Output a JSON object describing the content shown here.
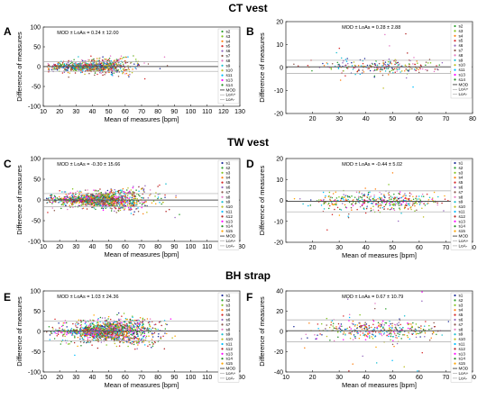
{
  "sections": [
    {
      "title": "CT vest"
    },
    {
      "title": "TW vest"
    },
    {
      "title": "BH strap"
    }
  ],
  "legend_labels": {
    "ct_left": [
      "s2",
      "s3",
      "s4",
      "s5",
      "s6",
      "s7",
      "s8",
      "s9",
      "s10",
      "s11",
      "s13",
      "s14",
      "MOD",
      "LoA+",
      "LoA-"
    ],
    "ct_right": [
      "s2",
      "s3",
      "s4",
      "s5",
      "s6",
      "s7",
      "s8",
      "s9",
      "s10",
      "s11",
      "s13",
      "s14",
      "MOD",
      "LoA+",
      "LoA-"
    ],
    "full": [
      "s1",
      "s2",
      "s3",
      "s4",
      "s5",
      "s6",
      "s7",
      "s8",
      "s9",
      "s10",
      "s11",
      "s12",
      "s13",
      "s14",
      "s15",
      "MOD",
      "LoA+",
      "LoA-"
    ]
  },
  "colors": {
    "subjects": [
      "#1f2f9a",
      "#2ca02c",
      "#7fc31c",
      "#ff7f0e",
      "#d62728",
      "#9467bd",
      "#8c564b",
      "#e377c2",
      "#17becf",
      "#bcbd22",
      "#00bfff",
      "#b22222",
      "#ff00ff",
      "#228b22",
      "#ffa500"
    ],
    "mod_line": "#555555",
    "loa_line": "#aaaaaa"
  },
  "chart_data": [
    {
      "panel": "A",
      "section": "CT vest",
      "type": "scatter",
      "annotation": "MOD ± LoAs = 0.24 ± 12.00",
      "xlabel": "Mean of measures [bpm]",
      "ylabel": "Difference of measures",
      "xlim": [
        10,
        130
      ],
      "ylim": [
        -100,
        100
      ],
      "xticks": [
        10,
        20,
        30,
        40,
        50,
        60,
        70,
        80,
        90,
        100,
        110,
        120,
        130
      ],
      "yticks": [
        -100,
        -50,
        0,
        50,
        100
      ],
      "mod": 0.24,
      "loa_upper": 12.24,
      "loa_lower": -11.76,
      "pattern": "diagonal",
      "subject_count": 12,
      "legend": "ct_left",
      "x_center": 40,
      "x_spread": 30,
      "y_spread": 25,
      "n_points": 900,
      "seed": 11
    },
    {
      "panel": "B",
      "section": "CT vest",
      "type": "scatter",
      "annotation": "MOD ± LoAs = 0.28 ± 2.88",
      "xlabel": "",
      "ylabel": "Difference of measures",
      "xlim": [
        10,
        80
      ],
      "ylim": [
        -20,
        20
      ],
      "xticks": [
        20,
        30,
        40,
        50,
        60,
        70,
        80
      ],
      "yticks": [
        -20,
        -10,
        0,
        10,
        20
      ],
      "mod": 0.28,
      "loa_upper": 3.16,
      "loa_lower": -2.6,
      "pattern": "cloud",
      "subject_count": 12,
      "legend": "ct_right",
      "x_center": 45,
      "x_spread": 12,
      "y_spread": 2.6,
      "n_points": 260,
      "seed": 22
    },
    {
      "panel": "C",
      "section": "TW vest",
      "type": "scatter",
      "annotation": "MOD ± LoAs = -0.30 ± 15.66",
      "xlabel": "Mean of measures [bpm]",
      "ylabel": "Difference of measures",
      "xlim": [
        10,
        130
      ],
      "ylim": [
        -100,
        100
      ],
      "xticks": [
        10,
        20,
        30,
        40,
        50,
        60,
        70,
        80,
        90,
        100,
        110,
        120,
        130
      ],
      "yticks": [
        -100,
        -50,
        0,
        50,
        100
      ],
      "mod": -0.3,
      "loa_upper": 15.36,
      "loa_lower": -15.96,
      "pattern": "diagonal",
      "subject_count": 15,
      "legend": "full",
      "x_center": 45,
      "x_spread": 32,
      "y_spread": 30,
      "n_points": 1300,
      "seed": 33
    },
    {
      "panel": "D",
      "section": "TW vest",
      "type": "scatter",
      "annotation": "MOD ± LoAs = -0.44 ± 5.02",
      "xlabel": "Mean of measures [bpm]",
      "ylabel": "Difference of measures",
      "xlim": [
        10,
        80
      ],
      "ylim": [
        -20,
        20
      ],
      "xticks": [
        20,
        30,
        40,
        50,
        60,
        70,
        80
      ],
      "yticks": [
        -20,
        -10,
        0,
        10,
        20
      ],
      "mod": -0.44,
      "loa_upper": 4.58,
      "loa_lower": -5.46,
      "pattern": "cloud",
      "subject_count": 15,
      "legend": "full",
      "x_center": 45,
      "x_spread": 12,
      "y_spread": 4,
      "n_points": 420,
      "seed": 44
    },
    {
      "panel": "E",
      "section": "BH strap",
      "type": "scatter",
      "annotation": "MOD ± LoAs = 1.03 ± 24.36",
      "xlabel": "Mean of measures [bpm]",
      "ylabel": "Difference of measures",
      "xlim": [
        10,
        130
      ],
      "ylim": [
        -100,
        100
      ],
      "xticks": [
        10,
        20,
        30,
        40,
        50,
        60,
        70,
        80,
        90,
        100,
        110,
        120,
        130
      ],
      "yticks": [
        -100,
        -50,
        0,
        50,
        100
      ],
      "mod": 1.03,
      "loa_upper": 25.39,
      "loa_lower": -23.33,
      "pattern": "diagonal",
      "subject_count": 15,
      "legend": "full",
      "x_center": 50,
      "x_spread": 30,
      "y_spread": 45,
      "n_points": 1500,
      "seed": 55
    },
    {
      "panel": "F",
      "section": "BH strap",
      "type": "scatter",
      "annotation": "MOD ± LoAs = 0.67 ± 10.79",
      "xlabel": "Mean of measures [bpm]",
      "ylabel": "Difference of measures",
      "xlim": [
        10,
        80
      ],
      "ylim": [
        -40,
        40
      ],
      "xticks": [
        10,
        20,
        30,
        40,
        50,
        60,
        70,
        80
      ],
      "yticks": [
        -40,
        -20,
        0,
        20,
        40
      ],
      "mod": 0.67,
      "loa_upper": 11.46,
      "loa_lower": -10.12,
      "pattern": "cloud",
      "subject_count": 15,
      "legend": "full",
      "x_center": 45,
      "x_spread": 12,
      "y_spread": 9,
      "n_points": 380,
      "seed": 66
    }
  ]
}
